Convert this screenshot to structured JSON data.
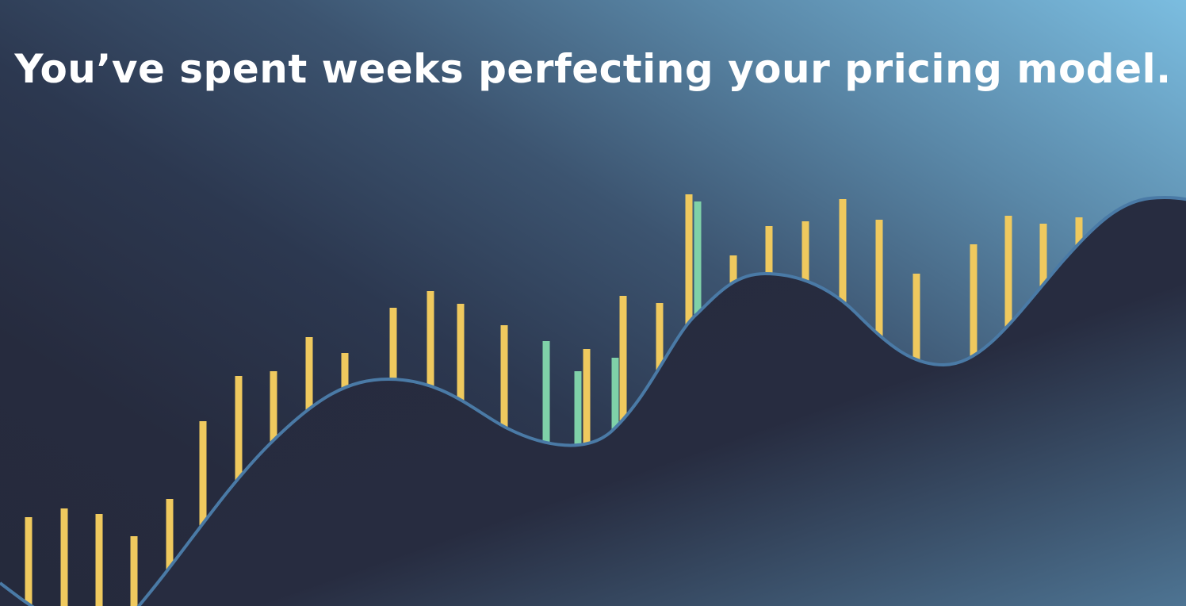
{
  "headline": "You’ve spent weeks perfecting your pricing model.",
  "colors": {
    "bar_primary": "#efc95e",
    "bar_secondary": "#7fd1a8",
    "curve_stroke": "#4a7aa6",
    "curve_fill": "#262a3d",
    "background_light": "#7bbde0",
    "background_dark": "#252a3c"
  }
}
